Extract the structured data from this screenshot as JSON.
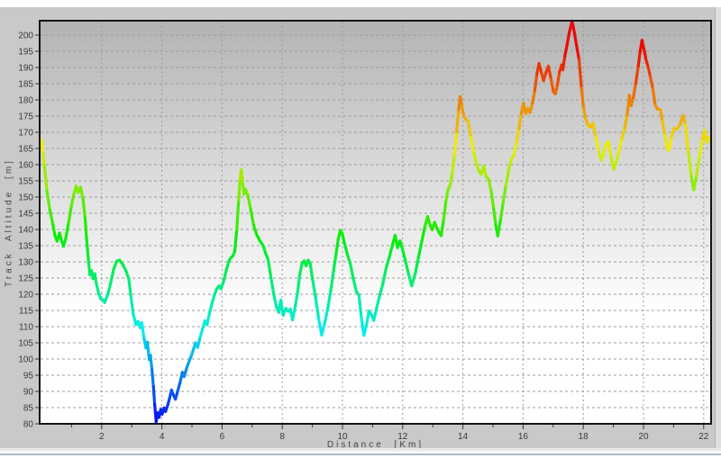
{
  "window": {
    "background_color": "#c9c9c9",
    "top_strip_color": "#ffffff",
    "bottom_bevel_line_color": "#a9bac9"
  },
  "chart_data": {
    "type": "line",
    "title": "",
    "xlabel": "Distance [Km]",
    "ylabel": "Track Altitude [m]",
    "xlim": [
      0,
      22.2
    ],
    "ylim": [
      80,
      204.4
    ],
    "grid": true,
    "legend_position": "none",
    "x_major_ticks": [
      2,
      4,
      6,
      8,
      10,
      12,
      14,
      16,
      18,
      20,
      22
    ],
    "x_minor_ticks": [
      1,
      3,
      5,
      7,
      9,
      11,
      13,
      15,
      17,
      19,
      21
    ],
    "y_ticks": [
      80,
      85,
      90,
      95,
      100,
      105,
      110,
      115,
      120,
      125,
      130,
      135,
      140,
      145,
      150,
      155,
      160,
      165,
      170,
      175,
      180,
      185,
      190,
      195,
      200
    ],
    "plot_background": {
      "top_color": "#b3b3b3",
      "bottom_color": "#ffffff",
      "fade_end_fraction": 0.72
    },
    "grid_color": "#9c9c9c",
    "axis_color": "#141414",
    "tick_color": "#3a3a3a",
    "tick_label_color": "#3a3a3a",
    "axis_label_color": "#454545",
    "line_width": 3.2,
    "color_map": {
      "type": "altitude-rainbow",
      "alt_at_blue": 80,
      "alt_at_red": 195,
      "hue_blue_deg": 240,
      "hue_red_deg": 0,
      "saturation_pct": 94,
      "lightness_pct": 48
    },
    "series": [
      {
        "name": "track-altitude-profile",
        "points": [
          [
            0,
            167.6
          ],
          [
            0.05,
            163.5
          ],
          [
            0.1,
            159.5
          ],
          [
            0.18,
            152
          ],
          [
            0.28,
            146
          ],
          [
            0.38,
            141.5
          ],
          [
            0.45,
            138
          ],
          [
            0.52,
            136.4
          ],
          [
            0.6,
            138.9
          ],
          [
            0.66,
            136.8
          ],
          [
            0.73,
            134.8
          ],
          [
            0.8,
            136.9
          ],
          [
            0.9,
            142
          ],
          [
            1,
            147.5
          ],
          [
            1.08,
            151
          ],
          [
            1.15,
            153.4
          ],
          [
            1.22,
            151.4
          ],
          [
            1.3,
            153
          ],
          [
            1.38,
            149.5
          ],
          [
            1.45,
            143.5
          ],
          [
            1.5,
            137
          ],
          [
            1.56,
            130.5
          ],
          [
            1.61,
            126
          ],
          [
            1.66,
            127.3
          ],
          [
            1.72,
            124.8
          ],
          [
            1.77,
            126.3
          ],
          [
            1.83,
            123
          ],
          [
            1.9,
            120.3
          ],
          [
            1.97,
            118.6
          ],
          [
            2.05,
            118.3
          ],
          [
            2.1,
            117.4
          ],
          [
            2.16,
            118.9
          ],
          [
            2.22,
            120.4
          ],
          [
            2.3,
            123.5
          ],
          [
            2.4,
            127.8
          ],
          [
            2.5,
            130.2
          ],
          [
            2.6,
            130.5
          ],
          [
            2.7,
            129.2
          ],
          [
            2.8,
            127.4
          ],
          [
            2.9,
            124.8
          ],
          [
            2.97,
            119.5
          ],
          [
            3.05,
            113.8
          ],
          [
            3.14,
            110.6
          ],
          [
            3.21,
            111.6
          ],
          [
            3.28,
            109.7
          ],
          [
            3.33,
            111.2
          ],
          [
            3.41,
            106.3
          ],
          [
            3.47,
            103.4
          ],
          [
            3.52,
            105.2
          ],
          [
            3.58,
            99.8
          ],
          [
            3.62,
            101.2
          ],
          [
            3.67,
            96.8
          ],
          [
            3.72,
            91.5
          ],
          [
            3.76,
            86
          ],
          [
            3.81,
            80.6
          ],
          [
            3.86,
            83.4
          ],
          [
            3.91,
            82
          ],
          [
            3.96,
            84.4
          ],
          [
            4.01,
            83
          ],
          [
            4.07,
            84.9
          ],
          [
            4.12,
            83.8
          ],
          [
            4.19,
            85.6
          ],
          [
            4.26,
            88
          ],
          [
            4.32,
            90.4
          ],
          [
            4.39,
            88.8
          ],
          [
            4.45,
            87.6
          ],
          [
            4.53,
            90.2
          ],
          [
            4.62,
            93.3
          ],
          [
            4.68,
            95.9
          ],
          [
            4.74,
            94.6
          ],
          [
            4.82,
            97.1
          ],
          [
            4.9,
            99.2
          ],
          [
            4.98,
            101
          ],
          [
            5.06,
            103.3
          ],
          [
            5.12,
            105
          ],
          [
            5.19,
            103.6
          ],
          [
            5.28,
            107
          ],
          [
            5.37,
            109.8
          ],
          [
            5.43,
            111.8
          ],
          [
            5.5,
            110.6
          ],
          [
            5.58,
            114
          ],
          [
            5.66,
            117
          ],
          [
            5.74,
            119.6
          ],
          [
            5.82,
            121.6
          ],
          [
            5.9,
            122.6
          ],
          [
            5.97,
            121.7
          ],
          [
            6.05,
            124
          ],
          [
            6.14,
            127.4
          ],
          [
            6.23,
            130.3
          ],
          [
            6.3,
            131.4
          ],
          [
            6.36,
            131.8
          ],
          [
            6.42,
            133.2
          ],
          [
            6.49,
            140
          ],
          [
            6.55,
            149
          ],
          [
            6.6,
            155.5
          ],
          [
            6.64,
            158.4
          ],
          [
            6.69,
            154
          ],
          [
            6.73,
            150.9
          ],
          [
            6.78,
            152.4
          ],
          [
            6.86,
            150.4
          ],
          [
            6.95,
            146.2
          ],
          [
            7.05,
            141.2
          ],
          [
            7.15,
            138.4
          ],
          [
            7.26,
            136.4
          ],
          [
            7.36,
            135.1
          ],
          [
            7.45,
            132.6
          ],
          [
            7.53,
            130.7
          ],
          [
            7.63,
            124.8
          ],
          [
            7.73,
            119.3
          ],
          [
            7.81,
            116
          ],
          [
            7.88,
            114.4
          ],
          [
            7.95,
            118.2
          ],
          [
            8.03,
            113.5
          ],
          [
            8.12,
            115.6
          ],
          [
            8.2,
            114.7
          ],
          [
            8.27,
            115.4
          ],
          [
            8.34,
            112.1
          ],
          [
            8.43,
            116.2
          ],
          [
            8.51,
            120.6
          ],
          [
            8.58,
            126
          ],
          [
            8.66,
            129.6
          ],
          [
            8.73,
            130.3
          ],
          [
            8.79,
            128.8
          ],
          [
            8.86,
            130.5
          ],
          [
            8.93,
            129.4
          ],
          [
            9.01,
            124.4
          ],
          [
            9.11,
            118.8
          ],
          [
            9.21,
            112.4
          ],
          [
            9.31,
            107.4
          ],
          [
            9.41,
            111
          ],
          [
            9.51,
            115.6
          ],
          [
            9.61,
            121
          ],
          [
            9.71,
            127.6
          ],
          [
            9.79,
            132.6
          ],
          [
            9.86,
            137
          ],
          [
            9.93,
            139.7
          ],
          [
            9.99,
            138.8
          ],
          [
            10.06,
            136
          ],
          [
            10.16,
            132.4
          ],
          [
            10.26,
            129.4
          ],
          [
            10.36,
            124.8
          ],
          [
            10.46,
            120.9
          ],
          [
            10.55,
            119.6
          ],
          [
            10.62,
            113.4
          ],
          [
            10.71,
            107.3
          ],
          [
            10.79,
            110.1
          ],
          [
            10.88,
            114.8
          ],
          [
            10.96,
            113.7
          ],
          [
            11.04,
            111.9
          ],
          [
            11.13,
            115.6
          ],
          [
            11.23,
            119.3
          ],
          [
            11.34,
            123.2
          ],
          [
            11.45,
            128
          ],
          [
            11.56,
            131.6
          ],
          [
            11.66,
            135.2
          ],
          [
            11.75,
            138.2
          ],
          [
            11.83,
            134.4
          ],
          [
            11.91,
            136.5
          ],
          [
            11.99,
            134
          ],
          [
            12.09,
            130.4
          ],
          [
            12.19,
            126.4
          ],
          [
            12.3,
            122.6
          ],
          [
            12.42,
            126.5
          ],
          [
            12.53,
            131.5
          ],
          [
            12.64,
            136.5
          ],
          [
            12.74,
            141
          ],
          [
            12.83,
            144
          ],
          [
            12.91,
            141.4
          ],
          [
            12.98,
            139.9
          ],
          [
            13.06,
            142.2
          ],
          [
            13.14,
            140.4
          ],
          [
            13.21,
            139
          ],
          [
            13.28,
            138.1
          ],
          [
            13.36,
            143
          ],
          [
            13.44,
            149
          ],
          [
            13.51,
            152.4
          ],
          [
            13.58,
            153.6
          ],
          [
            13.65,
            157.5
          ],
          [
            13.72,
            163
          ],
          [
            13.79,
            170
          ],
          [
            13.86,
            177
          ],
          [
            13.91,
            181
          ],
          [
            13.96,
            178.4
          ],
          [
            14.03,
            175
          ],
          [
            14.1,
            174
          ],
          [
            14.17,
            173.4
          ],
          [
            14.27,
            168.4
          ],
          [
            14.37,
            163.4
          ],
          [
            14.46,
            160
          ],
          [
            14.53,
            158.2
          ],
          [
            14.61,
            157
          ],
          [
            14.69,
            159.6
          ],
          [
            14.77,
            156.4
          ],
          [
            14.86,
            155.4
          ],
          [
            14.94,
            151.8
          ],
          [
            15.02,
            146.5
          ],
          [
            15.09,
            141.5
          ],
          [
            15.16,
            138
          ],
          [
            15.26,
            143.5
          ],
          [
            15.34,
            148.5
          ],
          [
            15.43,
            153.6
          ],
          [
            15.53,
            158.6
          ],
          [
            15.61,
            161.6
          ],
          [
            15.71,
            163.4
          ],
          [
            15.79,
            167
          ],
          [
            15.86,
            171
          ],
          [
            15.94,
            175.6
          ],
          [
            16.01,
            179
          ],
          [
            16.09,
            175.7
          ],
          [
            16.16,
            177.4
          ],
          [
            16.23,
            176.1
          ],
          [
            16.31,
            178.9
          ],
          [
            16.39,
            183
          ],
          [
            16.46,
            188
          ],
          [
            16.53,
            191.2
          ],
          [
            16.61,
            188.4
          ],
          [
            16.68,
            185.9
          ],
          [
            16.76,
            188.4
          ],
          [
            16.84,
            190.4
          ],
          [
            16.93,
            186.4
          ],
          [
            17.01,
            182.4
          ],
          [
            17.07,
            181.9
          ],
          [
            17.14,
            184.6
          ],
          [
            17.21,
            188.6
          ],
          [
            17.28,
            190.8
          ],
          [
            17.32,
            189.3
          ],
          [
            17.39,
            193.6
          ],
          [
            17.46,
            197
          ],
          [
            17.54,
            201
          ],
          [
            17.63,
            204.3
          ],
          [
            17.71,
            200.4
          ],
          [
            17.79,
            196
          ],
          [
            17.86,
            192.4
          ],
          [
            17.94,
            183.6
          ],
          [
            18.01,
            177.4
          ],
          [
            18.08,
            174.2
          ],
          [
            18.16,
            172.1
          ],
          [
            18.24,
            171.6
          ],
          [
            18.32,
            172.9
          ],
          [
            18.42,
            168.4
          ],
          [
            18.52,
            163.9
          ],
          [
            18.6,
            161.4
          ],
          [
            18.68,
            163.6
          ],
          [
            18.77,
            166.6
          ],
          [
            18.84,
            167.1
          ],
          [
            18.92,
            162.4
          ],
          [
            19.01,
            158.6
          ],
          [
            19.09,
            160.6
          ],
          [
            19.18,
            164
          ],
          [
            19.28,
            168
          ],
          [
            19.38,
            171.4
          ],
          [
            19.46,
            175.4
          ],
          [
            19.53,
            181.4
          ],
          [
            19.59,
            178.2
          ],
          [
            19.66,
            180.6
          ],
          [
            19.74,
            185
          ],
          [
            19.83,
            190.6
          ],
          [
            19.89,
            195
          ],
          [
            19.95,
            198.4
          ],
          [
            20.03,
            195
          ],
          [
            20.09,
            192.2
          ],
          [
            20.16,
            189.9
          ],
          [
            20.23,
            187
          ],
          [
            20.31,
            183.4
          ],
          [
            20.39,
            178.4
          ],
          [
            20.46,
            177.2
          ],
          [
            20.56,
            177
          ],
          [
            20.63,
            173.4
          ],
          [
            20.71,
            169
          ],
          [
            20.79,
            165
          ],
          [
            20.85,
            164.4
          ],
          [
            20.93,
            168.6
          ],
          [
            21.01,
            171.2
          ],
          [
            21.11,
            171
          ],
          [
            21.21,
            172.4
          ],
          [
            21.31,
            175.2
          ],
          [
            21.39,
            172.4
          ],
          [
            21.49,
            164
          ],
          [
            21.59,
            156.4
          ],
          [
            21.67,
            152.2
          ],
          [
            21.76,
            156.6
          ],
          [
            21.86,
            162.4
          ],
          [
            21.96,
            168
          ],
          [
            22.03,
            170.6
          ],
          [
            22.11,
            166.8
          ],
          [
            22.17,
            168.2
          ],
          [
            22.21,
            168.4
          ]
        ]
      }
    ]
  }
}
